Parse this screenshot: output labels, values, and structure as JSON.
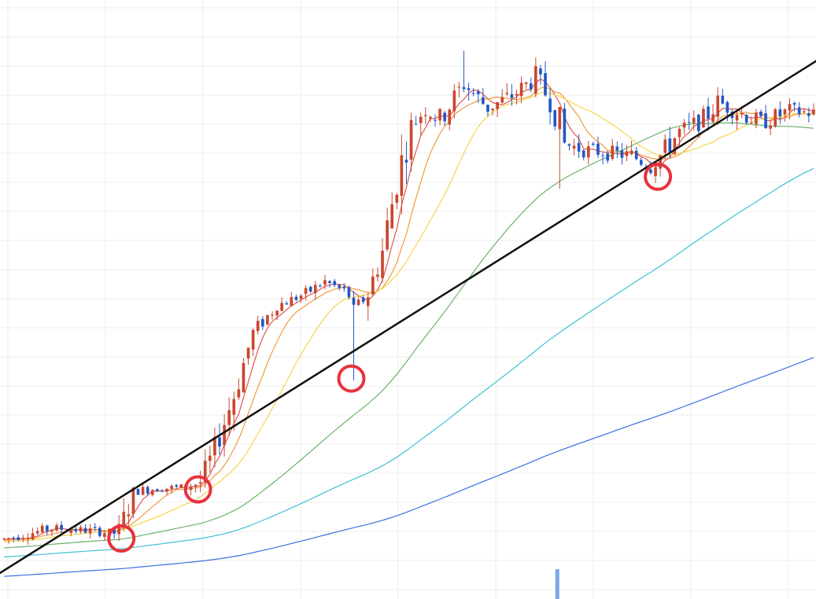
{
  "chart_data": {
    "type": "candlestick",
    "title": "",
    "xlabel": "",
    "ylabel": "",
    "grid": true,
    "x_count": 170,
    "ylim": [
      0,
      100
    ],
    "colors": {
      "up": "#c9472e",
      "down": "#2357c6",
      "grid": "#eeeeee",
      "trendline": "#111111",
      "marker": "#e8323c",
      "volume": "#7aa7e8"
    },
    "key_points": [
      {
        "x": 0,
        "y": 10
      },
      {
        "x": 10,
        "y": 11.8
      },
      {
        "x": 18,
        "y": 11.4
      },
      {
        "x": 24,
        "y": 10.9
      },
      {
        "x": 27,
        "y": 18
      },
      {
        "x": 32,
        "y": 18.5
      },
      {
        "x": 38,
        "y": 18.6
      },
      {
        "x": 41,
        "y": 19.5
      },
      {
        "x": 44,
        "y": 25
      },
      {
        "x": 48,
        "y": 34
      },
      {
        "x": 52,
        "y": 44.5
      },
      {
        "x": 57,
        "y": 49
      },
      {
        "x": 63,
        "y": 51
      },
      {
        "x": 67,
        "y": 53
      },
      {
        "x": 72,
        "y": 51
      },
      {
        "x": 73,
        "y": 48
      },
      {
        "x": 76,
        "y": 51
      },
      {
        "x": 79,
        "y": 58
      },
      {
        "x": 82,
        "y": 70
      },
      {
        "x": 85,
        "y": 79
      },
      {
        "x": 88,
        "y": 82
      },
      {
        "x": 91,
        "y": 80
      },
      {
        "x": 96,
        "y": 86
      },
      {
        "x": 101,
        "y": 82
      },
      {
        "x": 106,
        "y": 84
      },
      {
        "x": 111,
        "y": 87
      },
      {
        "x": 115,
        "y": 82
      },
      {
        "x": 117,
        "y": 76
      },
      {
        "x": 121,
        "y": 75
      },
      {
        "x": 126,
        "y": 74.5
      },
      {
        "x": 131,
        "y": 74
      },
      {
        "x": 135,
        "y": 72.5
      },
      {
        "x": 137,
        "y": 74
      },
      {
        "x": 141,
        "y": 78
      },
      {
        "x": 146,
        "y": 80
      },
      {
        "x": 149,
        "y": 83
      },
      {
        "x": 154,
        "y": 81
      },
      {
        "x": 158,
        "y": 79.5
      },
      {
        "x": 164,
        "y": 81.5
      },
      {
        "x": 170,
        "y": 81
      }
    ],
    "wick_events": [
      {
        "x": 73,
        "low": 36.5
      },
      {
        "x": 116,
        "low": 68.5
      },
      {
        "x": 96,
        "high": 91.5
      },
      {
        "x": 137,
        "low": 70.5
      }
    ],
    "series": [
      {
        "period": 5,
        "color": "#e2574c"
      },
      {
        "period": 10,
        "color": "#f19a3c"
      },
      {
        "period": 20,
        "color": "#f6d54c"
      },
      {
        "period": 60,
        "color": "#6bb36b"
      },
      {
        "period": 120,
        "color": "#3ec1d3"
      },
      {
        "period": 250,
        "color": "#3a6fe0"
      }
    ],
    "trendline": {
      "x0": -8,
      "y0": 0.5,
      "x1": 172,
      "y1": 90.8
    },
    "markers": [
      {
        "x": 25,
        "y": 10.1
      },
      {
        "x": 41,
        "y": 18.3
      },
      {
        "x": 73,
        "y": 36.8
      },
      {
        "x": 137,
        "y": 70.5
      }
    ],
    "volume_bars": [
      {
        "x": 116,
        "value": 100
      }
    ]
  }
}
